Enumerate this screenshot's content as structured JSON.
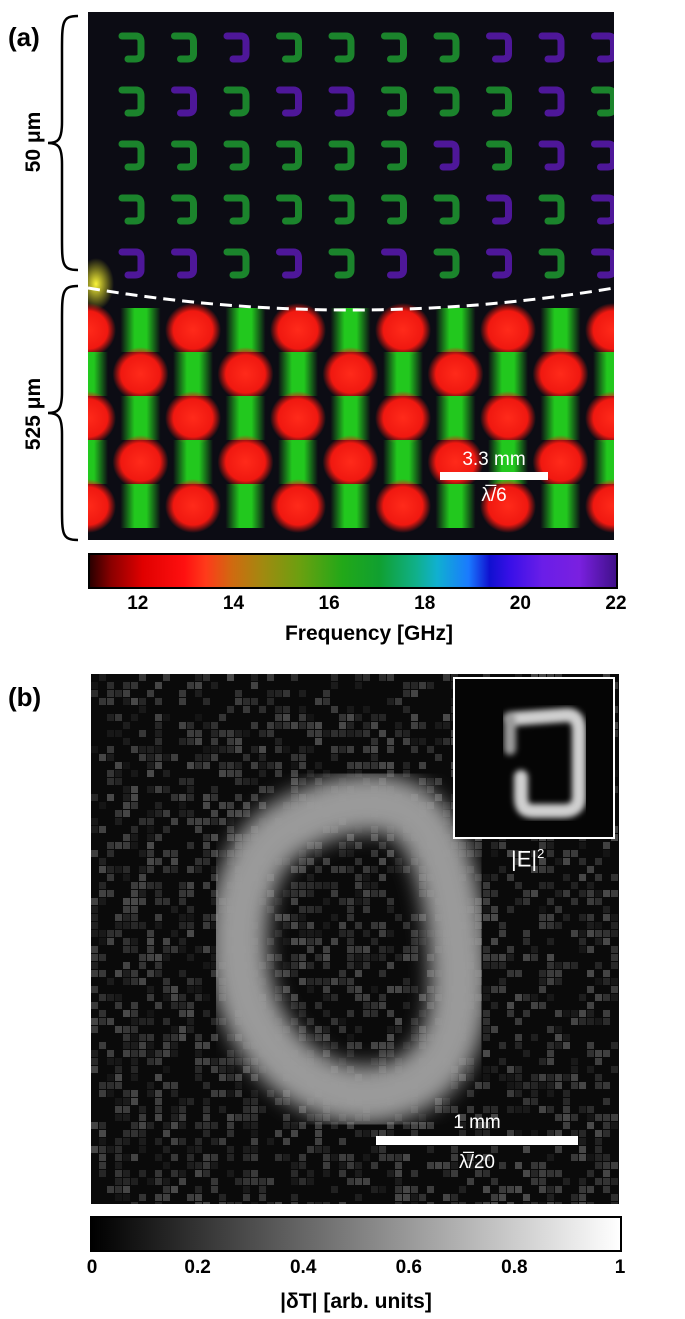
{
  "panel_a": {
    "label": "(a)",
    "thickness_top": "50 μm",
    "thickness_bottom": "525 μm",
    "scale_bar_text": "3.3 mm",
    "scale_bar_lambda": "λ̅/6",
    "colorbar": {
      "ticks": [
        "12",
        "14",
        "16",
        "18",
        "20",
        "22"
      ],
      "title": "Frequency [GHz]",
      "range": [
        11,
        22
      ]
    }
  },
  "panel_b": {
    "label": "(b)",
    "inset_label": "|E|",
    "inset_superscript": "2",
    "scale_bar_text": "1 mm",
    "scale_bar_lambda": "λ̅/20",
    "colorbar": {
      "ticks": [
        "0",
        "0.2",
        "0.4",
        "0.6",
        "0.8",
        "1"
      ],
      "title": "|δT| [arb. units]",
      "range": [
        0,
        1
      ]
    }
  },
  "colors": {
    "red": "#ff2a1a",
    "green": "#22c81e",
    "violet": "#7a1ee0",
    "yellow": "#f2ef20"
  }
}
